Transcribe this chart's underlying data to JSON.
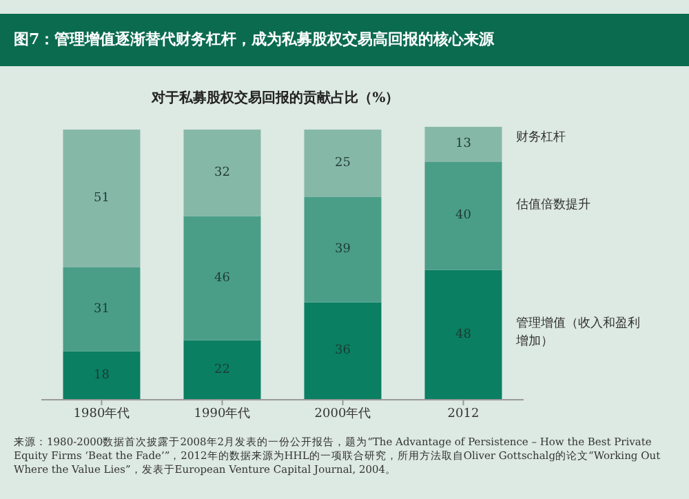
{
  "chart_data": {
    "type": "bar",
    "title": "图7：管理增值逐渐替代财务杠杆，成为私募股权交易高回报的核心来源",
    "subtitle": "对于私募股权交易回报的贡献占比（%）",
    "categories": [
      "1980年代",
      "1990年代",
      "2000年代",
      "2012"
    ],
    "stacked": true,
    "data_labels": true,
    "legend": false,
    "grid": false,
    "series": [
      {
        "name": "管理增值（收入和盈利增加）",
        "color": "#0a7f62",
        "values": [
          18,
          22,
          36,
          48
        ]
      },
      {
        "name": "估值倍数提升",
        "color": "#4a9e88",
        "values": [
          31,
          46,
          39,
          40
        ]
      },
      {
        "name": "财务杠杆",
        "color": "#86b8a8",
        "values": [
          51,
          32,
          25,
          13
        ]
      }
    ],
    "annotations": [
      "来源：1980-2000数据首次披露于2008年2月发表的一份公开报告，题为“The Advantage of Persistence – How the Best Private Equity Firms ‘Beat the Fade’”，2012年的数据来源为HHL的一项联合研究，所用方法取自Oliver Gottschalg的论文“Working Out Where the Value Lies”，发表于European Venture Capital Journal, 2004。"
    ]
  }
}
